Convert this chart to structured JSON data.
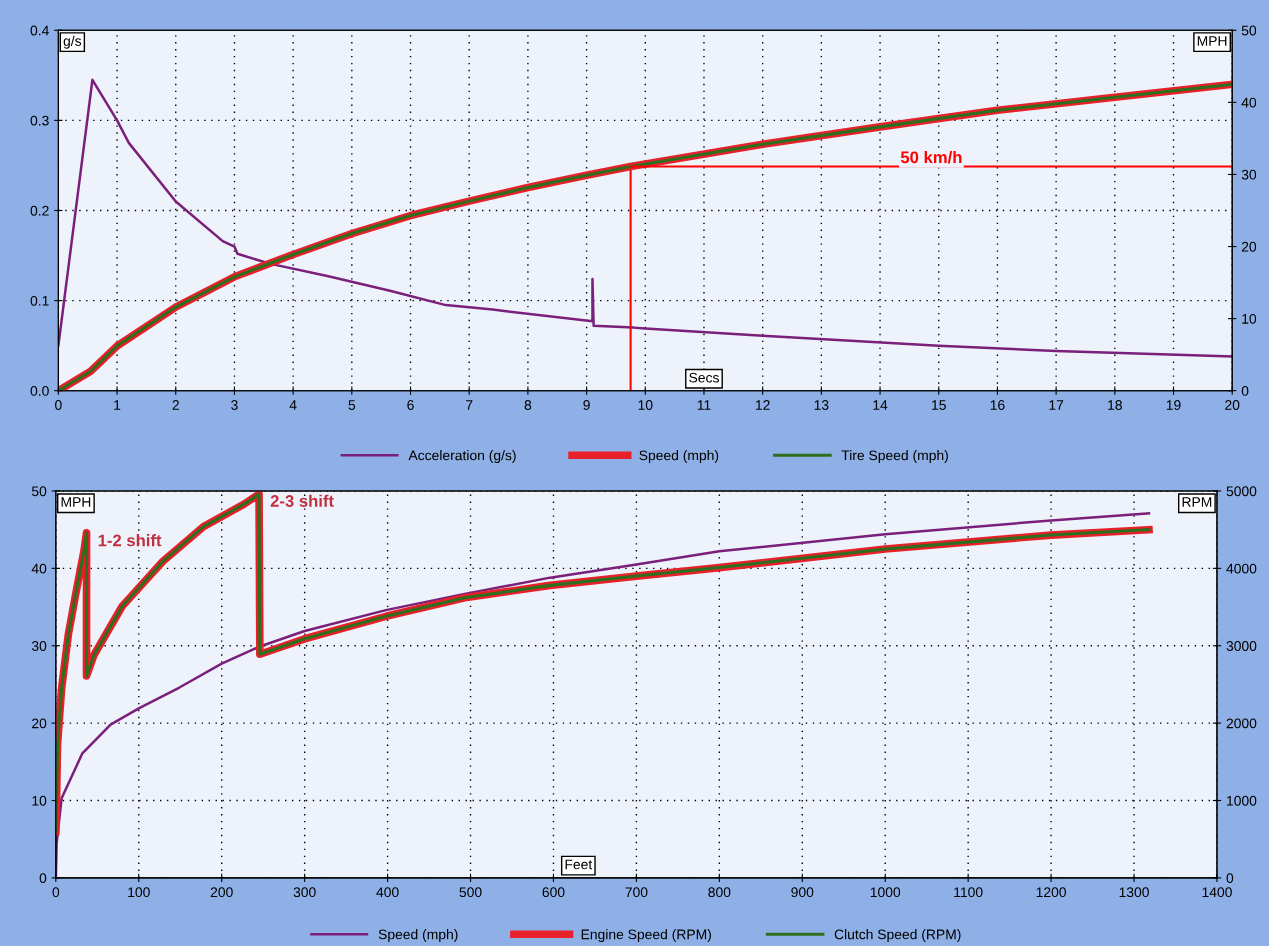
{
  "chart_data": [
    {
      "type": "line",
      "xlabel": "Secs",
      "ylabel": "g/s",
      "y2label": "MPH",
      "xlim": [
        0,
        20
      ],
      "xticks": [
        0,
        1,
        2,
        3,
        4,
        5,
        6,
        7,
        8,
        9,
        10,
        11,
        12,
        13,
        14,
        15,
        16,
        17,
        18,
        19,
        20
      ],
      "ylim": [
        0,
        0.4
      ],
      "yticks": [
        {
          "value": 0,
          "label": "0.0"
        },
        0.1,
        0.2,
        0.3,
        0.4
      ],
      "y2lim": [
        0,
        50
      ],
      "y2ticks": [
        0,
        10,
        20,
        30,
        40,
        50
      ],
      "grid": true,
      "legend": "bottom",
      "line_style": "solid",
      "series": [
        {
          "name": "Acceleration (g/s)",
          "color": "#7a1f7a",
          "x": [
            0,
            0.58,
            1.0,
            1.2,
            2.0,
            2.8,
            3.0,
            3.05,
            3.6,
            4.6,
            5.65,
            6.6,
            7.4,
            9.1,
            9.1,
            9.12,
            9.8,
            10,
            12,
            15,
            17,
            20
          ],
          "values": [
            0.05,
            0.345,
            0.3,
            0.275,
            0.21,
            0.166,
            0.16,
            0.152,
            0.141,
            0.127,
            0.111,
            0.095,
            0.09,
            0.077,
            0.124,
            0.072,
            0.07,
            0.069,
            0.061,
            0.05,
            0.044,
            0.038
          ]
        },
        {
          "name": "Speed (mph)",
          "color": "#e8202a",
          "axis": "y2",
          "x": [
            0,
            0.55,
            1,
            2,
            3,
            4,
            5,
            6,
            7,
            8,
            9,
            9.75,
            12,
            14,
            16,
            18,
            20
          ],
          "values": [
            0,
            2.7,
            6.2,
            11.6,
            15.8,
            18.9,
            21.8,
            24.3,
            26.3,
            28.2,
            29.9,
            31.1,
            34.2,
            36.6,
            38.9,
            40.7,
            42.5
          ]
        },
        {
          "name": "Tire Speed (mph)",
          "color": "#2e6e1e",
          "axis": "y2",
          "x": [
            0,
            0.55,
            1,
            2,
            3,
            4,
            5,
            6,
            7,
            8,
            9,
            9.75,
            12,
            14,
            16,
            18,
            20
          ],
          "values": [
            0,
            2.7,
            6.2,
            11.6,
            15.8,
            18.9,
            21.8,
            24.3,
            26.3,
            28.2,
            29.9,
            31.1,
            34.2,
            36.6,
            38.9,
            40.7,
            42.5
          ]
        }
      ],
      "ref_lines": [
        {
          "axis": "x",
          "value": 9.75,
          "color": "#ff0000"
        },
        {
          "axis": "y2",
          "value": 31.1,
          "label": "50 km/h",
          "color": "#ff0000"
        }
      ]
    },
    {
      "type": "line",
      "xlabel": "Feet",
      "ylabel": "MPH",
      "y2label": "RPM",
      "xlim": [
        0,
        1400
      ],
      "xticks": [
        0,
        100,
        200,
        300,
        400,
        500,
        600,
        700,
        800,
        900,
        1000,
        1100,
        1200,
        1300,
        1400
      ],
      "ylim": [
        0,
        50
      ],
      "yticks": [
        0,
        10,
        20,
        30,
        40,
        50
      ],
      "y2lim": [
        0,
        5000
      ],
      "y2ticks": [
        0,
        1000,
        2000,
        3000,
        4000,
        5000
      ],
      "grid": true,
      "legend": "bottom",
      "line_style": "solid",
      "series": [
        {
          "name": "Speed (mph)",
          "color": "#7a1f7a",
          "x": [
            0,
            1,
            7,
            32,
            66,
            100,
            149,
            200,
            246,
            300,
            398,
            493,
            596,
            700,
            800,
            1000,
            1200,
            1318
          ],
          "values": [
            0,
            4.5,
            10.3,
            16.1,
            19.8,
            21.9,
            24.6,
            27.7,
            29.9,
            31.9,
            34.6,
            36.7,
            38.8,
            40.5,
            42.2,
            44.4,
            46.2,
            47.1
          ]
        },
        {
          "name": "Engine Speed (RPM)",
          "color": "#e8202a",
          "axis": "y2",
          "x": [
            0,
            1,
            2,
            7,
            15,
            24,
            34,
            37,
            37,
            46,
            80,
            129,
            178,
            227,
            245,
            246,
            300,
            398,
            493,
            596,
            700,
            800,
            1000,
            1200,
            1318
          ],
          "values": [
            600,
            1080,
            1720,
            2450,
            3140,
            3670,
            4230,
            4460,
            2610,
            2880,
            3510,
            4090,
            4540,
            4830,
            4960,
            2890,
            3090,
            3380,
            3620,
            3780,
            3900,
            4010,
            4250,
            4430,
            4500
          ]
        },
        {
          "name": "Clutch Speed (RPM)",
          "color": "#2e6e1e",
          "axis": "y2",
          "x": [
            0,
            1,
            2,
            7,
            15,
            24,
            34,
            37,
            37,
            46,
            80,
            129,
            178,
            227,
            245,
            246,
            300,
            398,
            493,
            596,
            700,
            800,
            1000,
            1200,
            1318
          ],
          "values": [
            600,
            1080,
            1720,
            2450,
            3140,
            3670,
            4230,
            4460,
            2610,
            2880,
            3510,
            4090,
            4540,
            4830,
            4960,
            2890,
            3090,
            3380,
            3620,
            3780,
            3900,
            4010,
            4250,
            4430,
            4500
          ]
        }
      ],
      "annotations": [
        {
          "text": "1-2 shift",
          "x": 37,
          "y": 44.5
        },
        {
          "text": "2-3 shift",
          "x": 245,
          "y": 49.6
        }
      ]
    }
  ]
}
